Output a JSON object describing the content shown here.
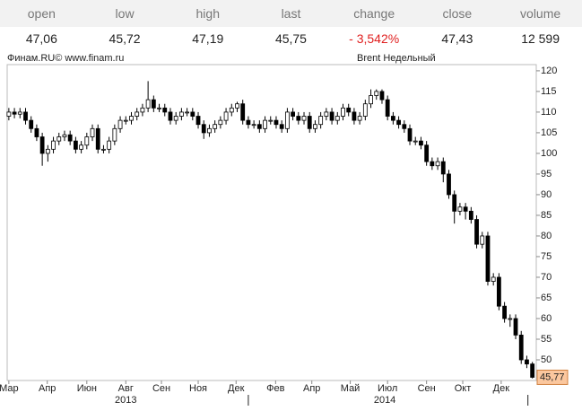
{
  "quote": {
    "headers": [
      "open",
      "low",
      "high",
      "last",
      "change",
      "close",
      "volume"
    ],
    "values": [
      "47,06",
      "45,72",
      "47,19",
      "45,75",
      "- 3,542%",
      "47,43",
      "12 599"
    ]
  },
  "chart_data": {
    "type": "candlestick",
    "source": "Финам.RU©  www.finam.ru",
    "title": "Brent Недельный",
    "x": [
      0,
      1,
      2,
      3,
      4,
      5,
      6,
      7,
      8,
      9,
      10,
      11,
      12,
      13,
      14,
      15,
      16,
      17,
      18,
      19,
      20,
      21,
      22,
      23,
      24,
      25,
      26,
      27,
      28,
      29,
      30,
      31,
      32,
      33,
      34,
      35,
      36,
      37,
      38,
      39,
      40,
      41,
      42,
      43,
      44,
      45,
      46,
      47,
      48,
      49,
      50,
      51,
      52,
      53,
      54,
      55,
      56,
      57,
      58,
      59,
      60,
      61,
      62,
      63,
      64,
      65,
      66,
      67,
      68,
      69,
      70,
      71,
      72,
      73,
      74,
      75,
      76,
      77,
      78,
      79,
      80,
      81,
      82,
      83,
      84,
      85,
      86,
      87,
      88,
      89,
      90,
      91,
      92,
      93,
      94
    ],
    "open": [
      109,
      110,
      109.5,
      110,
      108,
      106,
      104,
      100,
      101,
      103,
      104,
      104.5,
      103,
      101,
      102,
      104,
      106,
      101,
      101,
      103,
      106,
      108,
      108,
      109,
      110,
      111,
      113,
      111,
      111,
      110,
      108,
      109,
      110,
      110,
      109,
      107,
      105,
      106,
      107,
      108,
      110,
      111,
      112,
      108,
      107,
      107,
      106,
      108,
      108,
      107,
      106,
      110,
      109,
      108,
      109,
      106,
      107,
      109,
      110,
      108,
      109,
      111,
      110,
      108,
      109,
      112,
      114,
      115,
      113,
      109,
      108,
      107,
      106,
      103,
      103,
      102,
      98,
      97,
      98,
      95,
      90,
      86,
      87,
      86,
      84,
      78,
      80,
      69,
      70,
      63,
      60,
      60,
      56,
      50,
      49
    ],
    "high": [
      111,
      111,
      111,
      111,
      109,
      107,
      105,
      102,
      104,
      105,
      105.5,
      105.5,
      104,
      103,
      105,
      107,
      107,
      102,
      104,
      107,
      109,
      109,
      110,
      111,
      112,
      117.5,
      114,
      112,
      112,
      111,
      110,
      111,
      111,
      111,
      110,
      108,
      107,
      108,
      109,
      111,
      112,
      112.5,
      113,
      109,
      108,
      108,
      109,
      109,
      109,
      108,
      111,
      111,
      110,
      110,
      110,
      108,
      110,
      111,
      111,
      110,
      112,
      112,
      111,
      110,
      113,
      115.5,
      115.5,
      115.5,
      114,
      110,
      109,
      108,
      107,
      104,
      104,
      103,
      99,
      99,
      99,
      96,
      91,
      88,
      88,
      87,
      85,
      81,
      81,
      71,
      71,
      64,
      61,
      61,
      57,
      51,
      49.5
    ],
    "low": [
      108,
      108.5,
      108.5,
      107,
      105,
      103,
      97,
      98,
      100,
      102,
      103,
      102,
      100,
      100,
      101,
      103,
      100,
      100,
      100,
      102,
      105,
      107,
      107,
      108,
      109,
      110,
      110,
      110,
      109,
      107,
      107,
      108,
      109,
      108,
      106,
      103.5,
      104,
      105,
      106,
      107,
      109,
      110,
      107,
      106,
      106,
      105,
      105,
      107,
      106,
      105,
      105,
      108,
      107,
      107,
      105,
      105,
      106,
      108,
      107,
      107,
      108,
      109,
      107,
      107,
      108,
      111,
      113,
      112,
      108,
      107,
      106,
      105,
      102,
      102,
      101,
      97,
      96,
      96,
      93,
      89,
      83,
      85,
      84,
      83,
      77,
      77,
      68,
      68,
      62,
      59,
      58,
      55,
      49,
      48,
      45.5
    ],
    "close": [
      110,
      109.5,
      110,
      108,
      106,
      104,
      100,
      101,
      103,
      104,
      104.5,
      103,
      101,
      102,
      104,
      106,
      101,
      101,
      103,
      106,
      108,
      108,
      109,
      110,
      111,
      113,
      111,
      111,
      110,
      108,
      109,
      110,
      110,
      109,
      107,
      105,
      106,
      107,
      108,
      110,
      111,
      112,
      108,
      107,
      107,
      106,
      108,
      108,
      107,
      106,
      110,
      109,
      108,
      109,
      106,
      107,
      109,
      110,
      108,
      109,
      111,
      110,
      108,
      109,
      112,
      114,
      115,
      113,
      109,
      108,
      107,
      106,
      103,
      103,
      102,
      98,
      97,
      98,
      95,
      90,
      86,
      87,
      86,
      84,
      78,
      80,
      69,
      70,
      63,
      60,
      60,
      56,
      50,
      49,
      45.77
    ],
    "last_price_label": "45,77",
    "up_color": "#ffffff",
    "down_color": "#000000",
    "xlim": [
      -0.3,
      94.7
    ],
    "xticks": [
      {
        "value": 0,
        "label": "Мар"
      },
      {
        "value": 6.9,
        "label": "Апр"
      },
      {
        "value": 14,
        "label": "Июн"
      },
      {
        "value": 21,
        "label": "Авг"
      },
      {
        "value": 27.4,
        "label": "Сен"
      },
      {
        "value": 34,
        "label": "Ноя"
      },
      {
        "value": 40.8,
        "label": "Дек"
      },
      {
        "value": 47.9,
        "label": "Фев"
      },
      {
        "value": 54.4,
        "label": "Апр"
      },
      {
        "value": 61.3,
        "label": "Май"
      },
      {
        "value": 68,
        "label": "Июл"
      },
      {
        "value": 75,
        "label": "Сен"
      },
      {
        "value": 81.5,
        "label": "Окт"
      },
      {
        "value": 88.4,
        "label": "Дек"
      }
    ],
    "year_ticks": [
      {
        "value": 21,
        "label": "2013"
      },
      {
        "value": 67.5,
        "label": "2014"
      }
    ],
    "year_separators": [
      43,
      93.2
    ],
    "ylim": [
      45,
      121.5
    ],
    "yticks": [
      50,
      55,
      60,
      65,
      70,
      75,
      80,
      85,
      90,
      95,
      100,
      105,
      110,
      115,
      120
    ]
  }
}
